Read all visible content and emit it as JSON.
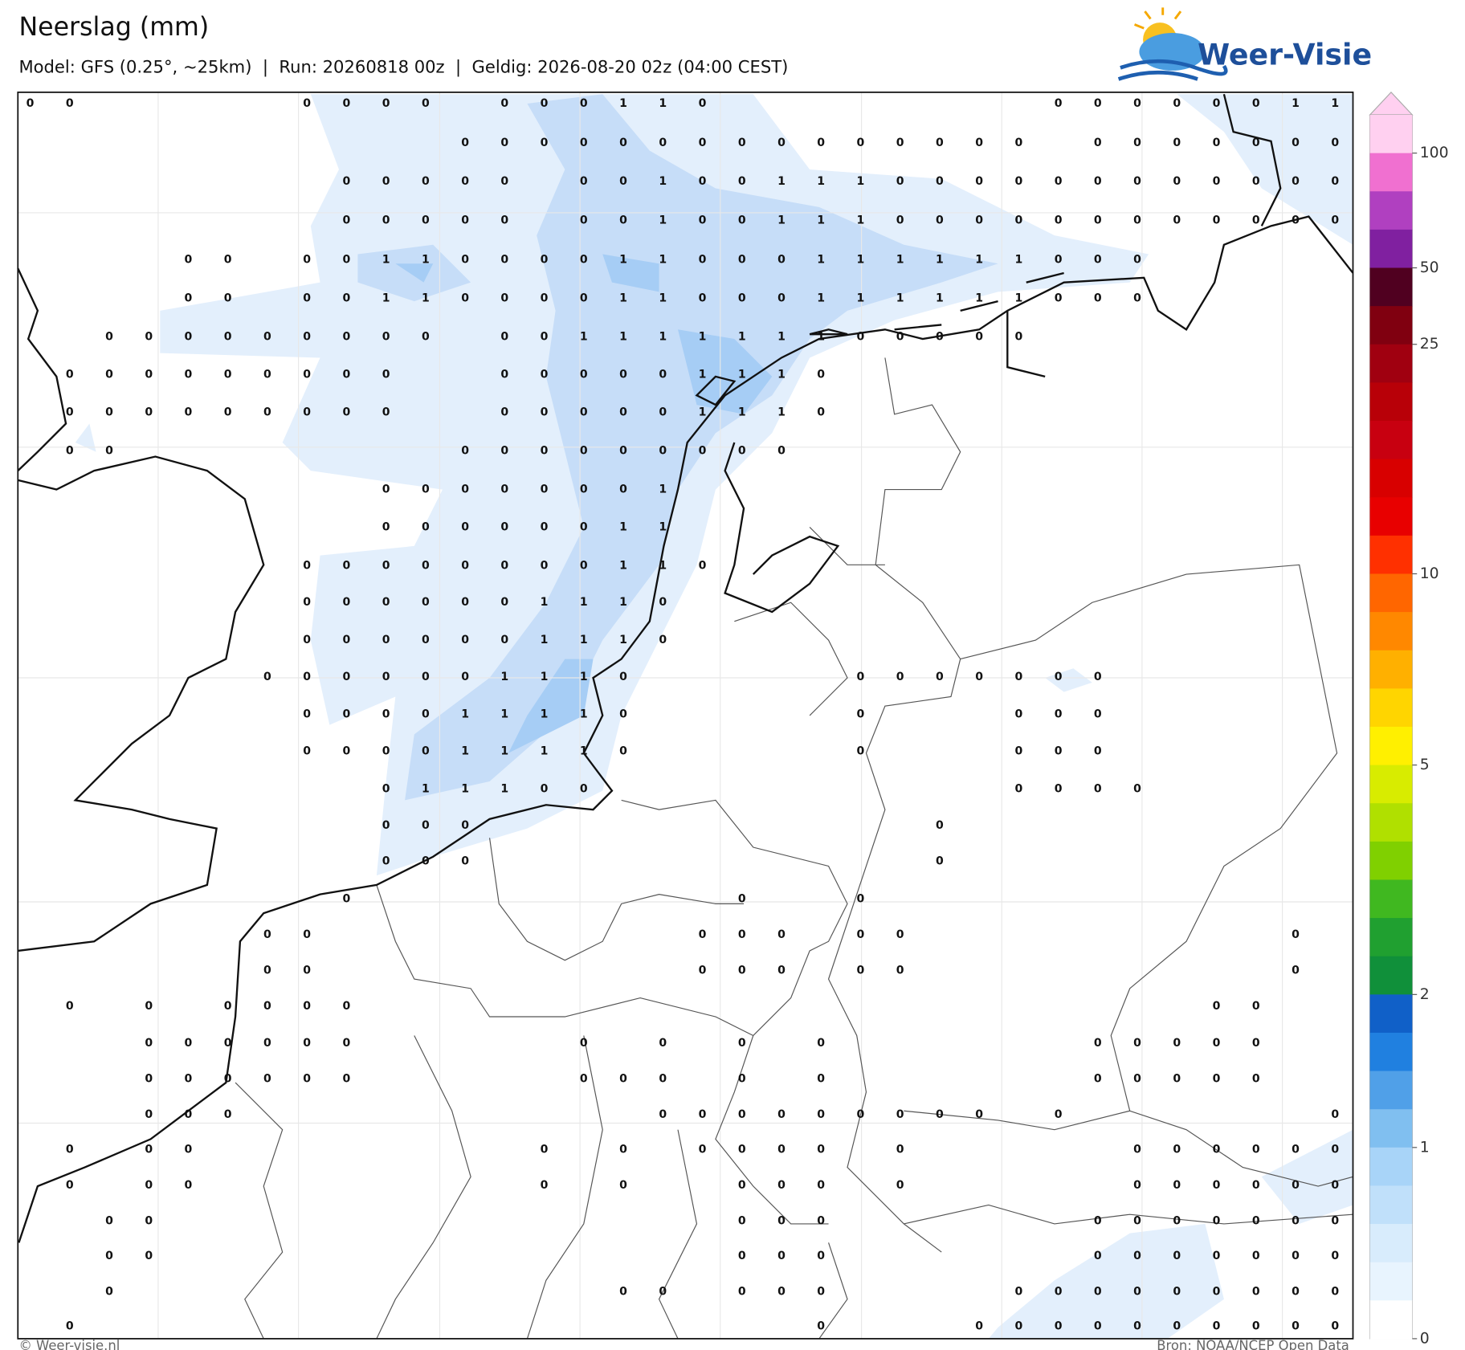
{
  "header": {
    "title": "Neerslag (mm)",
    "subtitle": "Model: GFS (0.25°, ~25km)  |  Run: 20260818 00z  |  Geldig: 2026-08-20 02z (04:00 CEST)",
    "logo": "Weer-Visie"
  },
  "footer": {
    "left": "© Weer-visie.nl",
    "right": "Bron: NOAA/NCEP Open Data"
  },
  "colorbar": {
    "ticks": [
      0,
      1,
      2,
      5,
      10,
      25,
      50,
      100
    ],
    "colors": [
      "#ffd0f0",
      "#f070d0",
      "#b040c0",
      "#8020a0",
      "#500020",
      "#800010",
      "#a00010",
      "#b80008",
      "#c80010",
      "#d80000",
      "#e80000",
      "#ff3000",
      "#ff6600",
      "#ff8800",
      "#ffb000",
      "#ffd500",
      "#fff000",
      "#d8ec00",
      "#b0e000",
      "#80d000",
      "#40b820",
      "#20a030",
      "#10903a",
      "#1060c8",
      "#2080e0",
      "#50a0e8",
      "#80bff0",
      "#a8d4f8",
      "#c0e0fa",
      "#d8ecfc",
      "#e8f4fe",
      "#ffffff"
    ]
  },
  "grid": {
    "rows": [
      [
        0,
        0,
        null,
        null,
        null,
        null,
        null,
        0,
        0,
        0,
        0,
        null,
        0,
        0,
        0,
        1,
        1,
        0,
        null,
        null,
        null,
        null,
        null,
        null,
        null,
        null,
        0,
        0,
        0,
        0,
        0,
        0,
        1,
        1
      ],
      [
        null,
        null,
        null,
        null,
        null,
        null,
        null,
        null,
        null,
        null,
        null,
        0,
        0,
        0,
        0,
        0,
        0,
        0,
        0,
        0,
        0,
        0,
        0,
        0,
        0,
        0,
        null,
        0,
        0,
        0,
        0,
        0,
        0,
        0
      ],
      [
        null,
        null,
        null,
        null,
        null,
        null,
        null,
        null,
        0,
        0,
        0,
        0,
        0,
        null,
        0,
        0,
        1,
        0,
        0,
        1,
        1,
        1,
        0,
        0,
        0,
        0,
        0,
        0,
        0,
        0,
        0,
        0,
        0,
        0
      ],
      [
        null,
        null,
        null,
        null,
        null,
        null,
        null,
        null,
        0,
        0,
        0,
        0,
        0,
        null,
        0,
        0,
        1,
        0,
        0,
        1,
        1,
        1,
        0,
        0,
        0,
        0,
        0,
        0,
        0,
        0,
        0,
        0,
        0,
        0
      ],
      [
        null,
        null,
        null,
        null,
        0,
        0,
        null,
        0,
        0,
        1,
        1,
        0,
        0,
        0,
        0,
        1,
        1,
        0,
        0,
        0,
        1,
        1,
        1,
        1,
        1,
        1,
        0,
        0,
        0,
        null,
        null,
        null,
        null,
        null
      ],
      [
        null,
        null,
        null,
        null,
        0,
        0,
        null,
        0,
        0,
        1,
        1,
        0,
        0,
        0,
        0,
        1,
        1,
        0,
        0,
        0,
        1,
        1,
        1,
        1,
        1,
        1,
        0,
        0,
        0,
        null,
        null,
        null,
        null,
        null
      ],
      [
        null,
        null,
        0,
        0,
        0,
        0,
        0,
        0,
        0,
        0,
        0,
        null,
        0,
        0,
        1,
        1,
        1,
        1,
        1,
        1,
        1,
        0,
        0,
        0,
        0,
        0,
        null,
        null,
        null,
        null,
        null,
        null,
        null,
        null
      ],
      [
        null,
        0,
        0,
        0,
        0,
        0,
        0,
        0,
        0,
        0,
        null,
        null,
        0,
        0,
        0,
        0,
        0,
        1,
        1,
        1,
        0,
        null,
        null,
        null,
        null,
        null,
        null,
        null,
        null,
        null,
        null,
        null,
        null,
        null
      ],
      [
        null,
        0,
        0,
        0,
        0,
        0,
        0,
        0,
        0,
        0,
        null,
        null,
        0,
        0,
        0,
        0,
        0,
        1,
        1,
        1,
        0,
        null,
        null,
        null,
        null,
        null,
        null,
        null,
        null,
        null,
        null,
        null,
        null,
        null
      ],
      [
        null,
        0,
        0,
        null,
        null,
        null,
        null,
        null,
        null,
        null,
        null,
        0,
        0,
        0,
        0,
        0,
        0,
        0,
        0,
        0,
        null,
        null,
        null,
        null,
        null,
        null,
        null,
        null,
        null,
        null,
        null,
        null,
        null,
        null
      ],
      [
        null,
        null,
        null,
        null,
        null,
        null,
        null,
        null,
        null,
        0,
        0,
        0,
        0,
        0,
        0,
        0,
        1,
        null,
        null,
        null,
        null,
        null,
        null,
        null,
        null,
        null,
        null,
        null,
        null,
        null,
        null,
        null,
        null,
        null
      ],
      [
        null,
        null,
        null,
        null,
        null,
        null,
        null,
        null,
        null,
        0,
        0,
        0,
        0,
        0,
        0,
        1,
        1,
        null,
        null,
        null,
        null,
        null,
        null,
        null,
        null,
        null,
        null,
        null,
        null,
        null,
        null,
        null,
        null,
        null
      ],
      [
        null,
        null,
        null,
        null,
        null,
        null,
        null,
        0,
        0,
        0,
        0,
        0,
        0,
        0,
        0,
        1,
        1,
        0,
        null,
        null,
        null,
        null,
        null,
        null,
        null,
        null,
        null,
        null,
        null,
        null,
        null,
        null,
        null,
        null
      ],
      [
        null,
        null,
        null,
        null,
        null,
        null,
        null,
        0,
        0,
        0,
        0,
        0,
        0,
        1,
        1,
        1,
        0,
        null,
        null,
        null,
        null,
        null,
        null,
        null,
        null,
        null,
        null,
        null,
        null,
        null,
        null,
        null,
        null,
        null
      ],
      [
        null,
        null,
        null,
        null,
        null,
        null,
        null,
        0,
        0,
        0,
        0,
        0,
        0,
        1,
        1,
        1,
        0,
        null,
        null,
        null,
        null,
        null,
        null,
        null,
        null,
        null,
        null,
        null,
        null,
        null,
        null,
        null,
        null,
        null
      ],
      [
        null,
        null,
        null,
        null,
        null,
        null,
        0,
        0,
        0,
        0,
        0,
        0,
        1,
        1,
        1,
        0,
        null,
        null,
        null,
        null,
        null,
        0,
        0,
        0,
        0,
        0,
        0,
        0,
        null,
        null,
        null,
        null,
        null,
        null
      ],
      [
        null,
        null,
        null,
        null,
        null,
        null,
        null,
        0,
        0,
        0,
        0,
        1,
        1,
        1,
        1,
        0,
        null,
        null,
        null,
        null,
        null,
        0,
        null,
        null,
        null,
        0,
        0,
        0,
        null,
        null,
        null,
        null,
        null,
        null
      ],
      [
        null,
        null,
        null,
        null,
        null,
        null,
        null,
        0,
        0,
        0,
        0,
        1,
        1,
        1,
        1,
        0,
        null,
        null,
        null,
        null,
        null,
        0,
        null,
        null,
        null,
        0,
        0,
        0,
        null,
        null,
        null,
        null,
        null,
        null
      ],
      [
        null,
        null,
        null,
        null,
        null,
        null,
        null,
        null,
        null,
        0,
        1,
        1,
        1,
        0,
        0,
        null,
        null,
        null,
        null,
        null,
        null,
        null,
        null,
        null,
        null,
        0,
        0,
        0,
        0,
        null,
        null,
        null,
        null,
        null
      ],
      [
        null,
        null,
        null,
        null,
        null,
        null,
        null,
        null,
        null,
        0,
        0,
        0,
        null,
        null,
        null,
        null,
        null,
        null,
        null,
        null,
        null,
        null,
        null,
        0,
        null,
        null,
        null,
        null,
        null,
        null,
        null,
        null,
        null,
        null
      ],
      [
        null,
        null,
        null,
        null,
        null,
        null,
        null,
        null,
        null,
        0,
        0,
        0,
        null,
        null,
        null,
        null,
        null,
        null,
        null,
        null,
        null,
        null,
        null,
        0,
        null,
        null,
        null,
        null,
        null,
        null,
        null,
        null,
        null,
        null
      ],
      [
        null,
        null,
        null,
        null,
        null,
        null,
        null,
        null,
        0,
        null,
        null,
        null,
        null,
        null,
        null,
        null,
        null,
        null,
        0,
        null,
        null,
        0,
        null,
        null,
        null,
        null,
        null,
        null,
        null,
        null,
        null,
        null,
        null,
        null
      ],
      [
        null,
        null,
        null,
        null,
        null,
        null,
        0,
        0,
        null,
        null,
        null,
        null,
        null,
        null,
        null,
        null,
        null,
        0,
        0,
        0,
        null,
        0,
        0,
        null,
        null,
        null,
        null,
        null,
        null,
        null,
        null,
        null,
        0,
        null
      ],
      [
        null,
        null,
        null,
        null,
        null,
        null,
        0,
        0,
        null,
        null,
        null,
        null,
        null,
        null,
        null,
        null,
        null,
        0,
        0,
        0,
        null,
        0,
        0,
        null,
        null,
        null,
        null,
        null,
        null,
        null,
        null,
        null,
        0,
        null
      ],
      [
        null,
        0,
        null,
        0,
        null,
        0,
        0,
        0,
        0,
        null,
        null,
        null,
        null,
        null,
        null,
        null,
        null,
        null,
        null,
        null,
        null,
        null,
        null,
        null,
        null,
        null,
        null,
        null,
        null,
        null,
        0,
        0,
        null,
        null
      ],
      [
        null,
        null,
        null,
        0,
        0,
        0,
        0,
        0,
        0,
        null,
        null,
        null,
        null,
        null,
        0,
        null,
        0,
        null,
        0,
        null,
        0,
        null,
        null,
        null,
        null,
        null,
        null,
        0,
        0,
        0,
        0,
        0,
        null,
        null
      ],
      [
        null,
        null,
        null,
        0,
        0,
        0,
        0,
        0,
        0,
        null,
        null,
        null,
        null,
        null,
        0,
        0,
        0,
        null,
        0,
        null,
        0,
        null,
        null,
        null,
        null,
        null,
        null,
        0,
        0,
        0,
        0,
        0,
        null,
        null
      ],
      [
        null,
        null,
        null,
        0,
        0,
        0,
        null,
        null,
        null,
        null,
        null,
        null,
        null,
        null,
        null,
        null,
        0,
        0,
        0,
        0,
        0,
        0,
        0,
        0,
        0,
        null,
        0,
        null,
        null,
        null,
        null,
        null,
        null,
        0
      ],
      [
        null,
        0,
        null,
        0,
        0,
        null,
        null,
        null,
        null,
        null,
        null,
        null,
        null,
        0,
        null,
        0,
        null,
        0,
        0,
        0,
        0,
        null,
        0,
        null,
        null,
        null,
        null,
        null,
        0,
        0,
        0,
        0,
        0,
        0
      ],
      [
        null,
        0,
        null,
        0,
        0,
        null,
        null,
        null,
        null,
        null,
        null,
        null,
        null,
        0,
        null,
        0,
        null,
        null,
        0,
        0,
        0,
        null,
        0,
        null,
        null,
        null,
        null,
        null,
        0,
        0,
        0,
        0,
        0,
        0
      ],
      [
        null,
        null,
        0,
        0,
        null,
        null,
        null,
        null,
        null,
        null,
        null,
        null,
        null,
        null,
        null,
        null,
        null,
        null,
        0,
        0,
        0,
        null,
        null,
        null,
        null,
        null,
        null,
        0,
        0,
        0,
        0,
        0,
        0,
        0
      ],
      [
        null,
        null,
        0,
        0,
        null,
        null,
        null,
        null,
        null,
        null,
        null,
        null,
        null,
        null,
        null,
        null,
        null,
        null,
        0,
        0,
        0,
        null,
        null,
        null,
        null,
        null,
        null,
        0,
        0,
        0,
        0,
        0,
        0,
        0
      ],
      [
        null,
        null,
        0,
        null,
        null,
        null,
        null,
        null,
        null,
        null,
        null,
        null,
        null,
        null,
        null,
        0,
        0,
        null,
        0,
        0,
        0,
        null,
        null,
        null,
        null,
        0,
        0,
        0,
        0,
        0,
        0,
        0,
        0,
        0
      ],
      [
        null,
        0,
        null,
        null,
        null,
        null,
        null,
        null,
        null,
        null,
        null,
        null,
        null,
        null,
        null,
        null,
        null,
        null,
        null,
        null,
        0,
        null,
        null,
        null,
        0,
        0,
        0,
        0,
        0,
        0,
        0,
        0,
        0,
        0
      ]
    ]
  }
}
